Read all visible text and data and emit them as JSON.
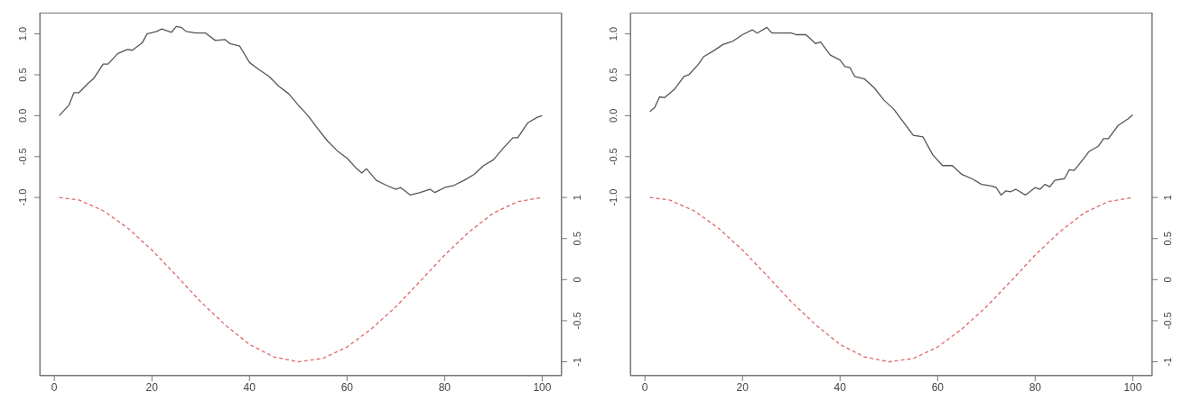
{
  "chart_data": [
    {
      "type": "line",
      "xlim": [
        -3,
        104
      ],
      "xticks": [
        0,
        20,
        40,
        60,
        80,
        100
      ],
      "ylim": [
        -3.18,
        1.26
      ],
      "yticks": [
        {
          "value": -1,
          "label": "-1.0"
        },
        {
          "value": -0.5,
          "label": "-0.5"
        },
        {
          "value": 0,
          "label": "0.0"
        },
        {
          "value": 0.5,
          "label": "0.5"
        },
        {
          "value": 1,
          "label": "1.0"
        }
      ],
      "y2lim": [
        -1.17,
        3.25
      ],
      "y2ticks": [
        -1,
        -0.5,
        0,
        0.5,
        1
      ],
      "marker": "none",
      "series": [
        {
          "color": "#555555",
          "line_style": "solid",
          "x": [
            1,
            3,
            4,
            5,
            7,
            8,
            10,
            11,
            13,
            15,
            16,
            18,
            19,
            21,
            22,
            24,
            25,
            26,
            27,
            29,
            31,
            33,
            35,
            36,
            38,
            40,
            42,
            44,
            46,
            48,
            50,
            52,
            54,
            56,
            58,
            60,
            62,
            63,
            64,
            66,
            68,
            70,
            71,
            73,
            75,
            77,
            78,
            80,
            82,
            84,
            86,
            88,
            90,
            92,
            94,
            95,
            97,
            99,
            100
          ],
          "values": [
            0.0,
            0.13,
            0.28,
            0.28,
            0.4,
            0.45,
            0.63,
            0.63,
            0.76,
            0.81,
            0.8,
            0.89,
            1.0,
            1.03,
            1.06,
            1.02,
            1.09,
            1.08,
            1.03,
            1.01,
            1.01,
            0.92,
            0.93,
            0.88,
            0.85,
            0.65,
            0.56,
            0.48,
            0.36,
            0.27,
            0.13,
            0.0,
            -0.16,
            -0.31,
            -0.43,
            -0.52,
            -0.65,
            -0.7,
            -0.65,
            -0.79,
            -0.85,
            -0.9,
            -0.88,
            -0.97,
            -0.94,
            -0.9,
            -0.94,
            -0.88,
            -0.85,
            -0.79,
            -0.72,
            -0.61,
            -0.54,
            -0.4,
            -0.27,
            -0.27,
            -0.09,
            -0.02,
            0.0
          ]
        },
        {
          "color": "#e06666",
          "line_style": "dashed",
          "axis": "y2",
          "x": [
            1,
            5,
            10,
            15,
            20,
            25,
            30,
            35,
            40,
            45,
            50,
            55,
            60,
            65,
            70,
            75,
            80,
            85,
            90,
            95,
            100
          ],
          "values": [
            1.0,
            0.97,
            0.84,
            0.63,
            0.36,
            0.05,
            -0.27,
            -0.55,
            -0.79,
            -0.94,
            -1.0,
            -0.96,
            -0.82,
            -0.6,
            -0.33,
            -0.02,
            0.3,
            0.58,
            0.81,
            0.95,
            1.0
          ]
        }
      ]
    },
    {
      "type": "line",
      "xlim": [
        -3,
        104
      ],
      "xticks": [
        0,
        20,
        40,
        60,
        80,
        100
      ],
      "ylim": [
        -3.18,
        1.26
      ],
      "yticks": [
        {
          "value": -1,
          "label": "-1.0"
        },
        {
          "value": -0.5,
          "label": "-0.5"
        },
        {
          "value": 0,
          "label": "0.0"
        },
        {
          "value": 0.5,
          "label": "0.5"
        },
        {
          "value": 1,
          "label": "1.0"
        }
      ],
      "y2lim": [
        -1.17,
        3.25
      ],
      "y2ticks": [
        -1,
        -0.5,
        0,
        0.5,
        1
      ],
      "marker": "none",
      "series": [
        {
          "color": "#555555",
          "line_style": "solid",
          "x": [
            1,
            2,
            3,
            4,
            6,
            8,
            9,
            11,
            12,
            14,
            16,
            18,
            20,
            22,
            23,
            25,
            26,
            28,
            30,
            31,
            33,
            35,
            36,
            38,
            40,
            41,
            42,
            43,
            45,
            47,
            49,
            51,
            53,
            55,
            57,
            59,
            61,
            63,
            65,
            67,
            69,
            71,
            72,
            73,
            74,
            75,
            76,
            78,
            80,
            81,
            82,
            83,
            84,
            86,
            87,
            88,
            90,
            91,
            93,
            94,
            95,
            97,
            99,
            100
          ],
          "values": [
            0.05,
            0.1,
            0.23,
            0.22,
            0.32,
            0.48,
            0.5,
            0.63,
            0.72,
            0.79,
            0.87,
            0.91,
            0.99,
            1.05,
            1.01,
            1.08,
            1.01,
            1.01,
            1.01,
            0.99,
            0.99,
            0.88,
            0.9,
            0.74,
            0.68,
            0.6,
            0.59,
            0.48,
            0.45,
            0.34,
            0.19,
            0.08,
            -0.08,
            -0.24,
            -0.26,
            -0.48,
            -0.61,
            -0.61,
            -0.72,
            -0.77,
            -0.84,
            -0.86,
            -0.88,
            -0.97,
            -0.92,
            -0.93,
            -0.9,
            -0.97,
            -0.88,
            -0.9,
            -0.84,
            -0.87,
            -0.79,
            -0.77,
            -0.66,
            -0.67,
            -0.52,
            -0.44,
            -0.37,
            -0.28,
            -0.28,
            -0.12,
            -0.04,
            0.01
          ]
        },
        {
          "color": "#e06666",
          "line_style": "dashed",
          "axis": "y2",
          "x": [
            1,
            5,
            10,
            15,
            20,
            25,
            30,
            35,
            40,
            45,
            50,
            55,
            60,
            65,
            70,
            75,
            80,
            85,
            90,
            95,
            100
          ],
          "values": [
            1.0,
            0.97,
            0.84,
            0.63,
            0.36,
            0.05,
            -0.27,
            -0.55,
            -0.79,
            -0.94,
            -1.0,
            -0.96,
            -0.82,
            -0.6,
            -0.33,
            -0.02,
            0.3,
            0.58,
            0.81,
            0.95,
            1.0
          ]
        }
      ]
    }
  ]
}
